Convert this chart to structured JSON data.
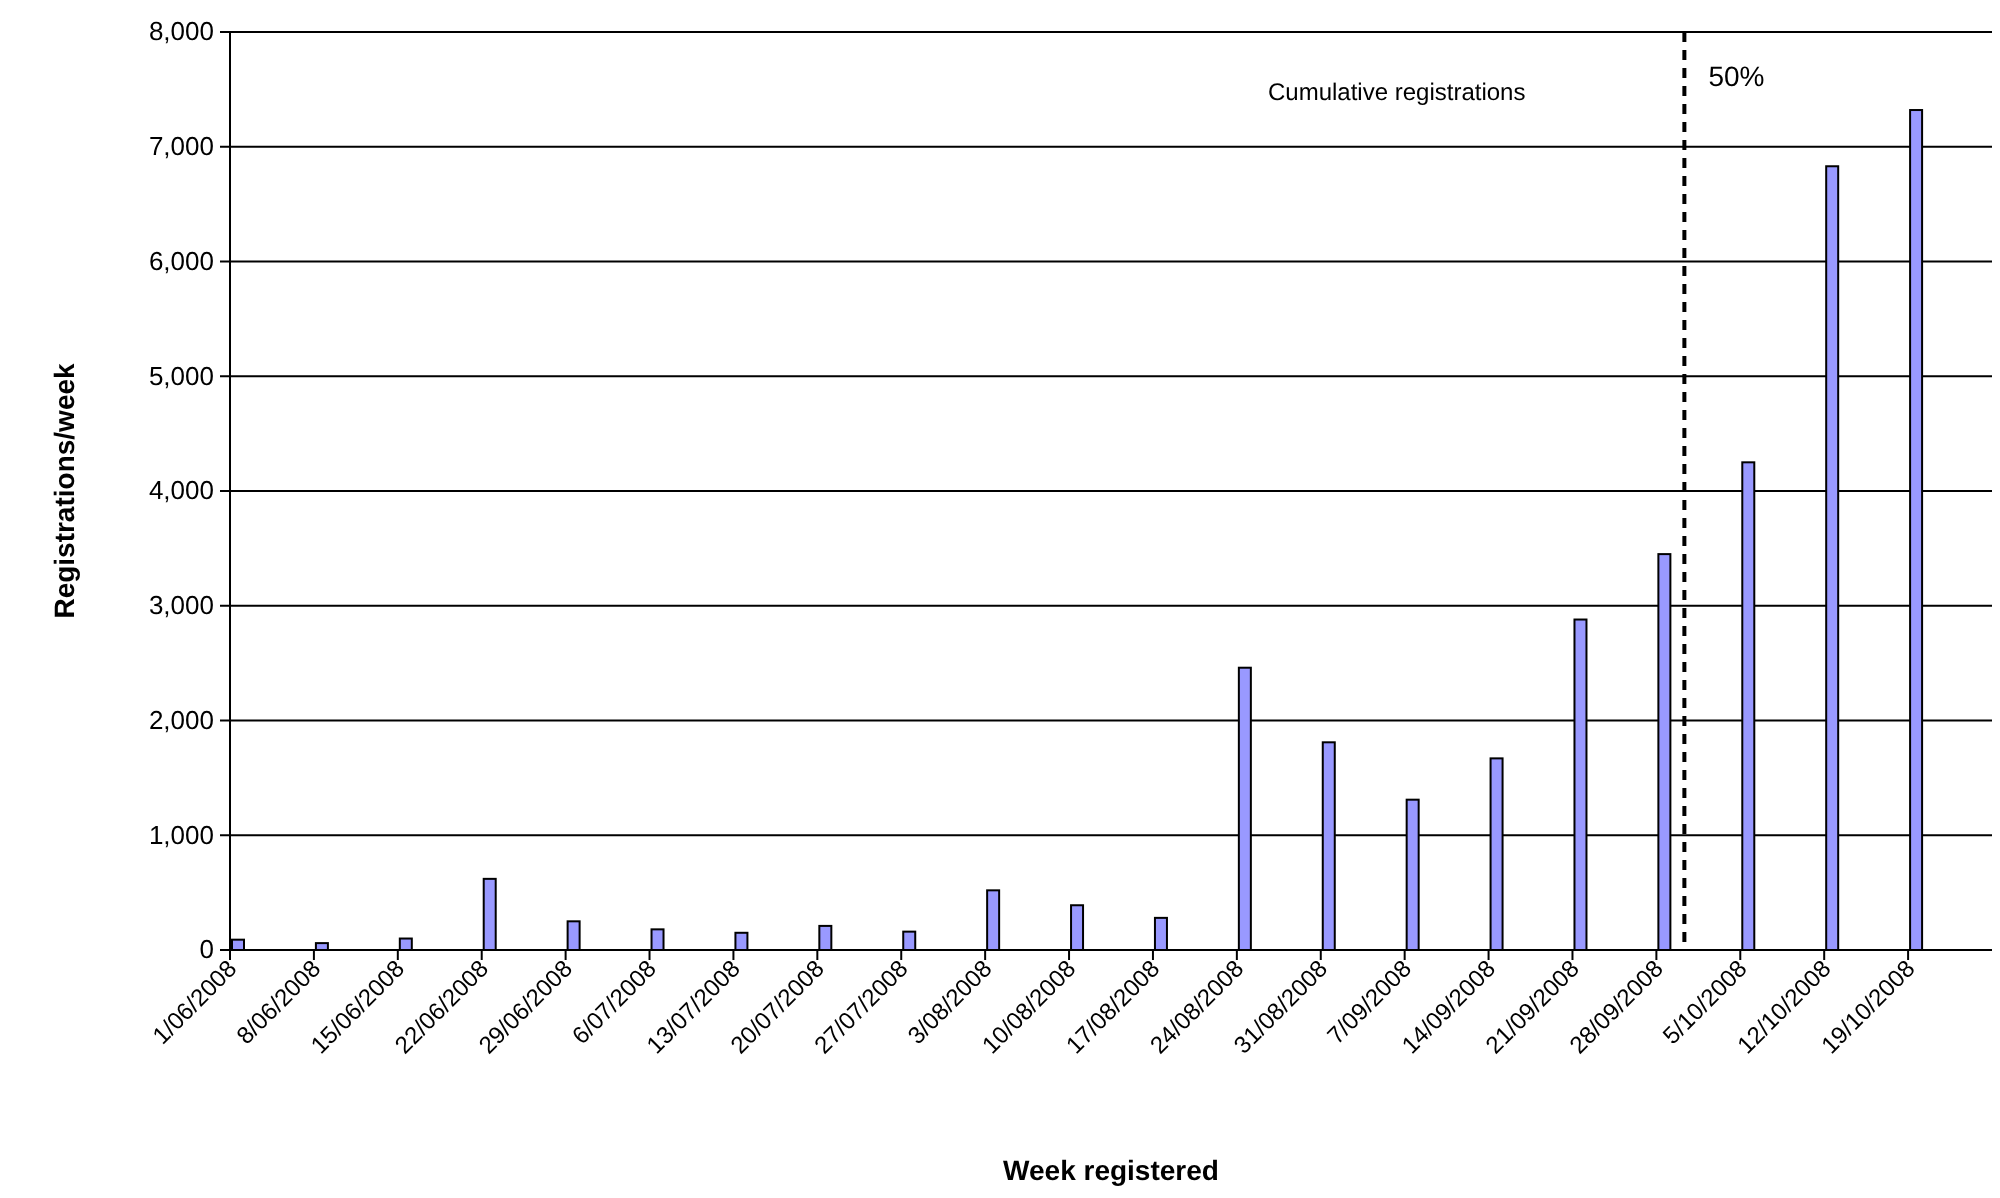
{
  "chart_data": {
    "type": "bar",
    "xlabel": "Week registered",
    "ylabel": "Registrations/week",
    "categories": [
      "1/06/2008",
      "8/06/2008",
      "15/06/2008",
      "22/06/2008",
      "29/06/2008",
      "6/07/2008",
      "13/07/2008",
      "20/07/2008",
      "27/07/2008",
      "3/08/2008",
      "10/08/2008",
      "17/08/2008",
      "24/08/2008",
      "31/08/2008",
      "7/09/2008",
      "14/09/2008",
      "21/09/2008",
      "28/09/2008",
      "5/10/2008",
      "12/10/2008",
      "19/10/2008"
    ],
    "values": [
      90,
      60,
      100,
      620,
      250,
      180,
      150,
      210,
      160,
      520,
      390,
      280,
      2460,
      1810,
      1310,
      1670,
      2880,
      3450,
      4250,
      6830,
      7320
    ],
    "color": "#9999ff",
    "ylim": [
      0,
      8000
    ],
    "yticks": [
      {
        "value": 0,
        "label": "0"
      },
      {
        "value": 1000,
        "label": "1,000"
      },
      {
        "value": 2000,
        "label": "2,000"
      },
      {
        "value": 3000,
        "label": "3,000"
      },
      {
        "value": 4000,
        "label": "4,000"
      },
      {
        "value": 5000,
        "label": "5,000"
      },
      {
        "value": 6000,
        "label": "6,000"
      },
      {
        "value": 7000,
        "label": "7,000"
      },
      {
        "value": 8000,
        "label": "8,000"
      }
    ],
    "grid": "y",
    "ref_lines": [
      {
        "axis": "x",
        "value": "28/09/2008",
        "label": "50%",
        "line_style": "dashed",
        "color": "#000000"
      }
    ],
    "annotations": [
      "Cumulative registrations"
    ]
  }
}
